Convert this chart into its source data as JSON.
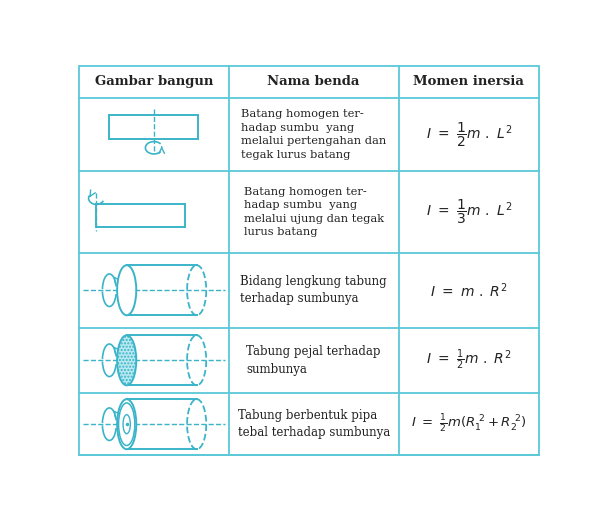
{
  "title_row": [
    "Gambar bangun",
    "Nama benda",
    "Momen inersia"
  ],
  "background_color": "#ffffff",
  "border_color": "#5bc8d8",
  "text_color": "#222222",
  "cyan_color": "#3ab4c8",
  "descriptions": [
    "Batang homogen ter-\nhadap sumbu  yang\nmelalui pertengahan dan\ntegak lurus batang",
    "Batang homogen ter-\nhadap sumbu  yang\nmelalui ujung dan tegak\nlurus batang",
    "Bidang lengkung tabung\nterhadap sumbunya",
    "Tabung pejal terhadap\nsumbunya",
    "Tabung berbentuk pipa\ntebal terhadap sumbunya"
  ]
}
